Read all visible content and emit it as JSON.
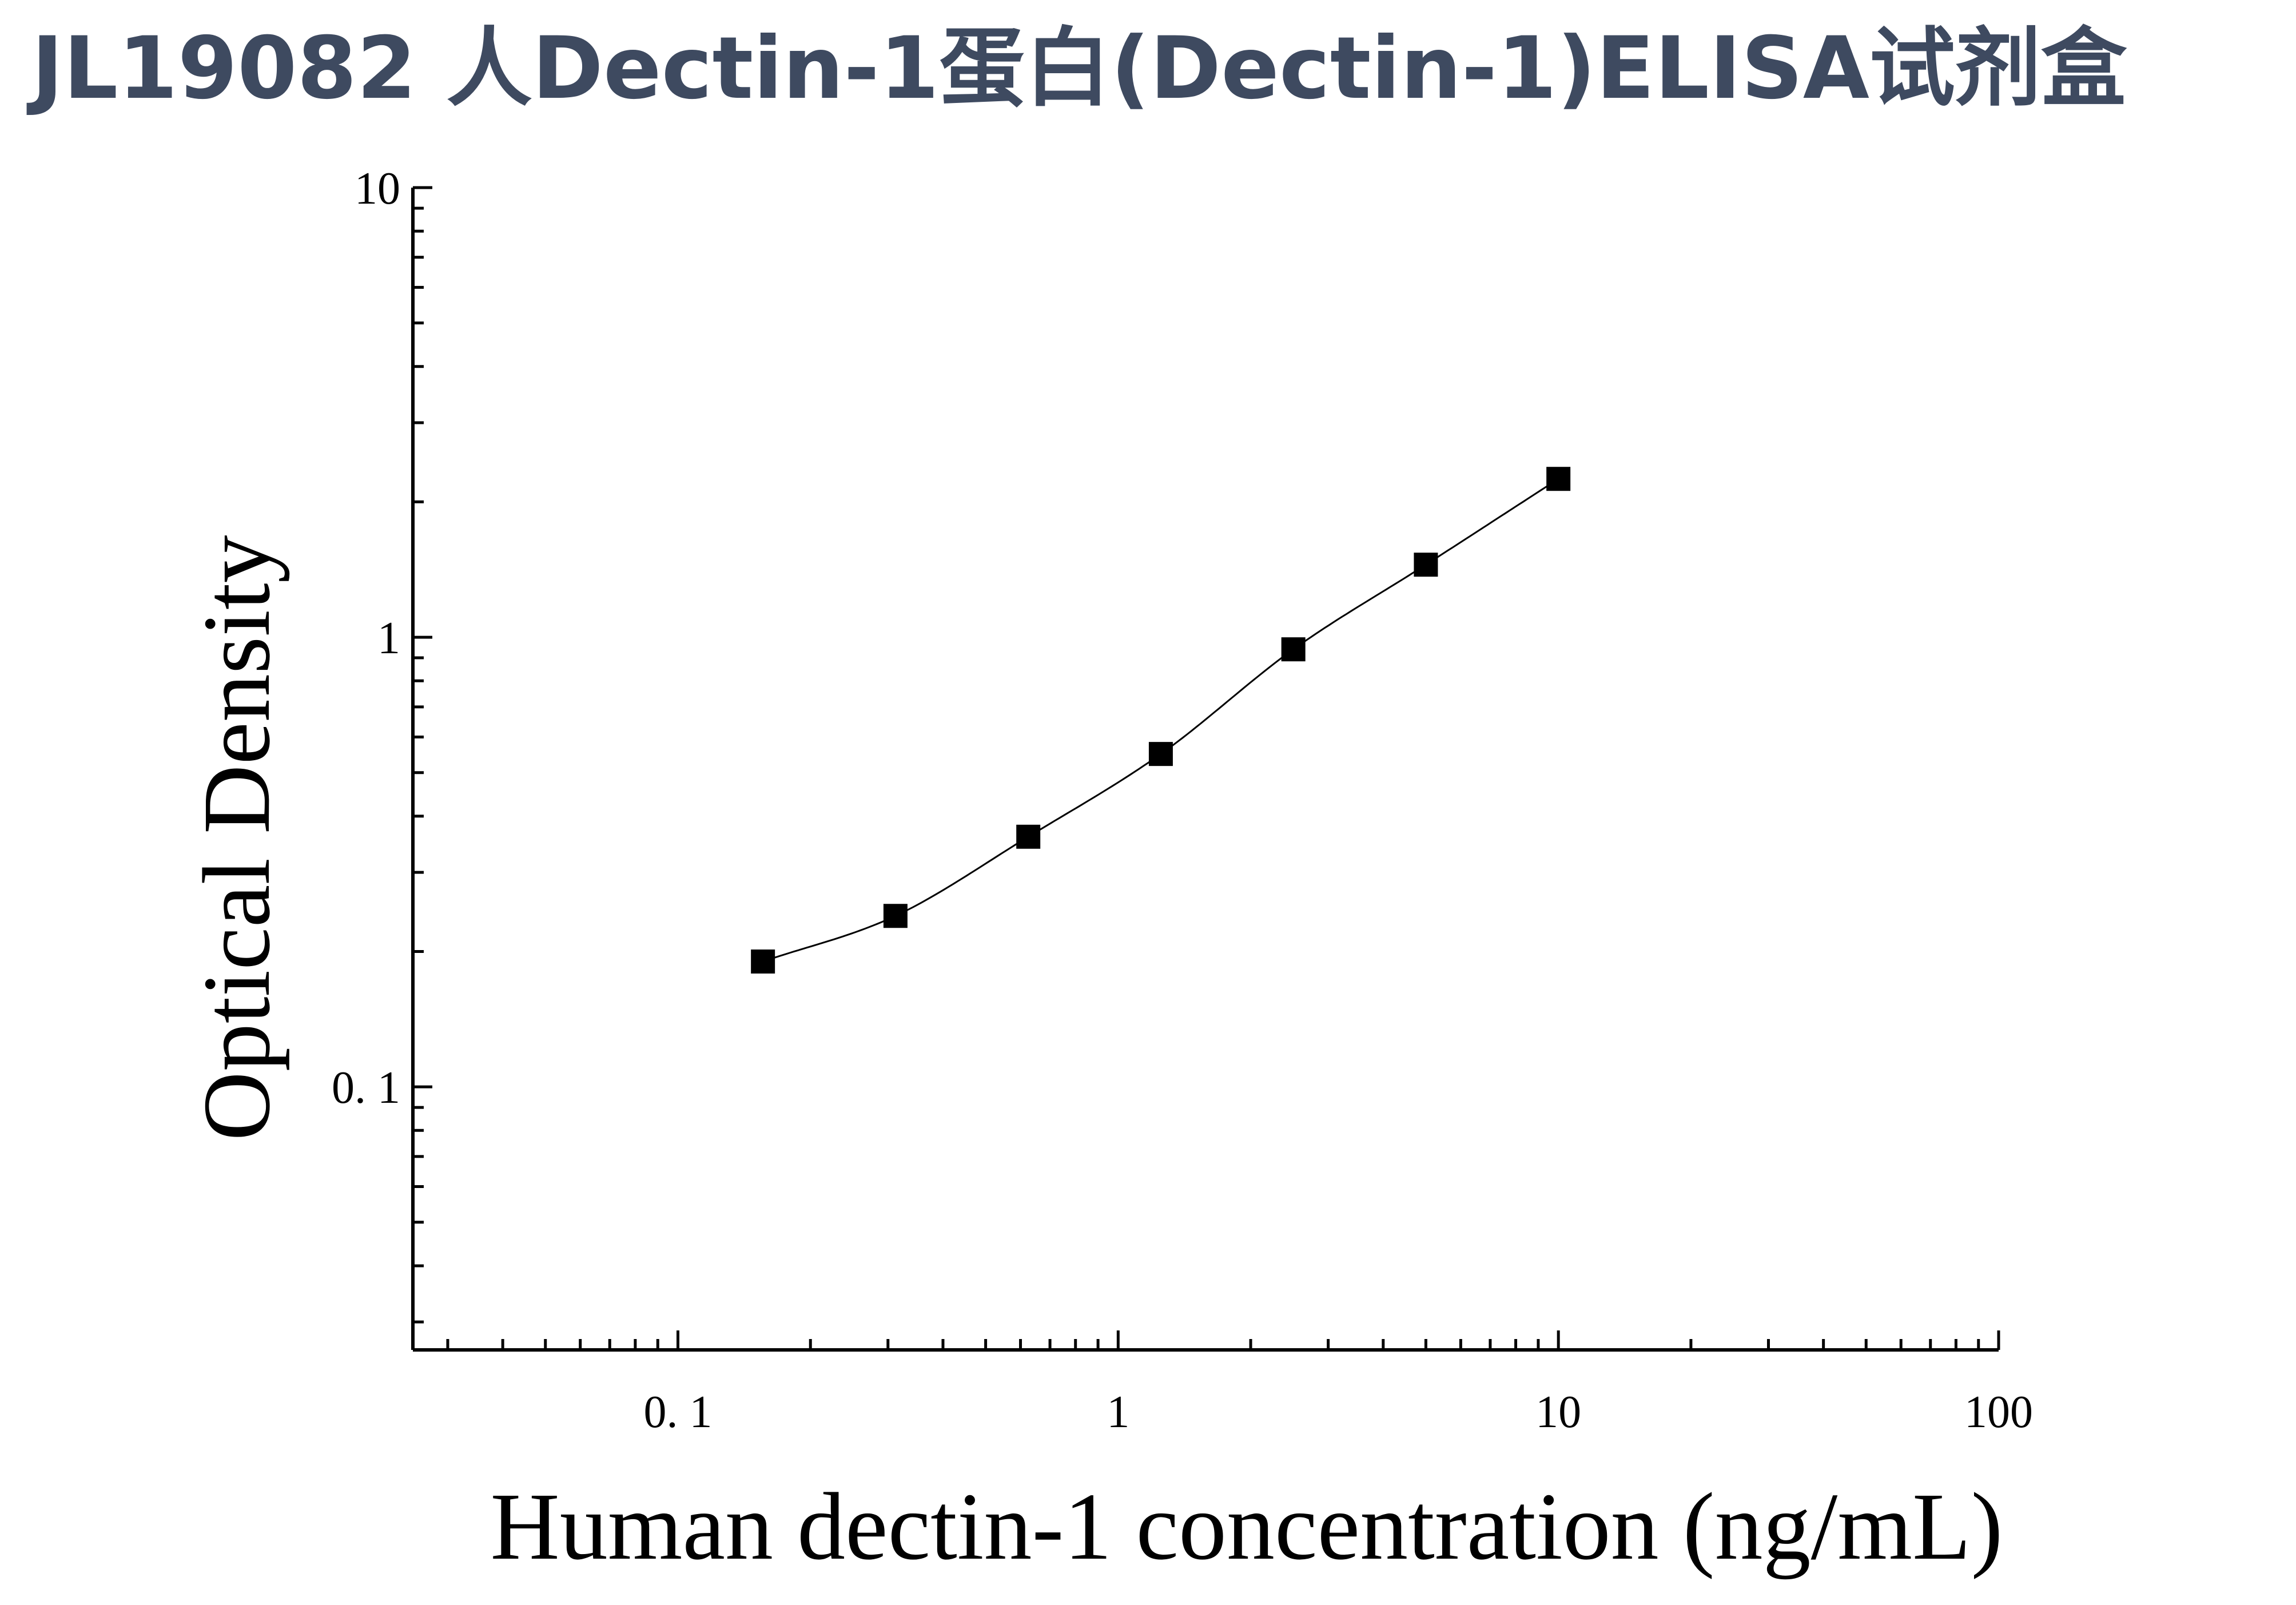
{
  "header": {
    "title": "JL19082 人Dectin-1蛋白(Dectin-1)ELISA试剂盒"
  },
  "colors": {
    "title": "#3e4a60",
    "axis": "#000000",
    "marker": "#000000",
    "curve": "#000000"
  },
  "chart_data": {
    "type": "scatter",
    "title": "JL19082 人Dectin-1蛋白(Dectin-1)ELISA试剂盒",
    "xlabel": "Human dectin-1 concentration (ng/mL)",
    "ylabel": "Optical Density",
    "xscale": "log",
    "yscale": "log",
    "xlim": [
      0.025,
      100
    ],
    "ylim": [
      0.026,
      10
    ],
    "x_ticks": [
      {
        "value": 0.1,
        "label": "0. 1"
      },
      {
        "value": 1,
        "label": "1"
      },
      {
        "value": 10,
        "label": "10"
      },
      {
        "value": 100,
        "label": "100"
      }
    ],
    "y_ticks": [
      {
        "value": 0.1,
        "label": "0. 1"
      },
      {
        "value": 1,
        "label": "1"
      },
      {
        "value": 10,
        "label": "10"
      }
    ],
    "grid": false,
    "legend": "none",
    "marker": "square",
    "fit_curve": true,
    "series": [
      {
        "x": [
          0.156,
          0.312,
          0.625,
          1.25,
          2.5,
          5,
          10
        ],
        "y": [
          0.19,
          0.24,
          0.36,
          0.55,
          0.94,
          1.45,
          2.25
        ]
      }
    ]
  }
}
